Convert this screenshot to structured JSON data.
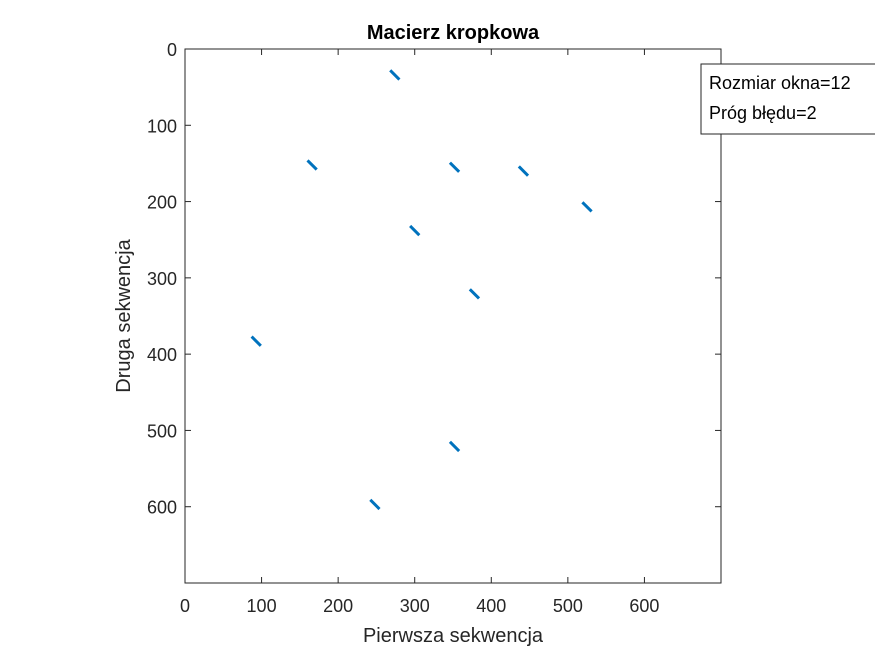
{
  "chart_data": {
    "type": "scatter",
    "title": "Macierz kropkowa",
    "xlabel": "Pierwsza sekwencja",
    "ylabel": "Druga sekwencja",
    "xlim": [
      0,
      700
    ],
    "ylim": [
      0,
      700
    ],
    "y_reversed": true,
    "xticks": [
      0,
      100,
      200,
      300,
      400,
      500,
      600
    ],
    "yticks": [
      0,
      100,
      200,
      300,
      400,
      500,
      600
    ],
    "xtick_labels": [
      "0",
      "100",
      "200",
      "300",
      "400",
      "500",
      "600"
    ],
    "ytick_labels": [
      "0",
      "100",
      "200",
      "300",
      "400",
      "500",
      "600"
    ],
    "grid": false,
    "series_color": "#0072BD",
    "segments": [
      {
        "x": [
          268,
          280
        ],
        "y": [
          28,
          40
        ]
      },
      {
        "x": [
          160,
          172
        ],
        "y": [
          146,
          158
        ]
      },
      {
        "x": [
          346,
          358
        ],
        "y": [
          149,
          161
        ]
      },
      {
        "x": [
          436,
          448
        ],
        "y": [
          154,
          166
        ]
      },
      {
        "x": [
          519,
          531
        ],
        "y": [
          201,
          213
        ]
      },
      {
        "x": [
          294,
          306
        ],
        "y": [
          232,
          244
        ]
      },
      {
        "x": [
          372,
          384
        ],
        "y": [
          315,
          327
        ]
      },
      {
        "x": [
          87,
          99
        ],
        "y": [
          377,
          389
        ]
      },
      {
        "x": [
          346,
          358
        ],
        "y": [
          515,
          527
        ]
      },
      {
        "x": [
          242,
          254
        ],
        "y": [
          591,
          603
        ]
      }
    ],
    "legend": {
      "entries": [
        "Rozmiar okna=12",
        "Próg błędu=2"
      ],
      "position": "top-right"
    }
  }
}
